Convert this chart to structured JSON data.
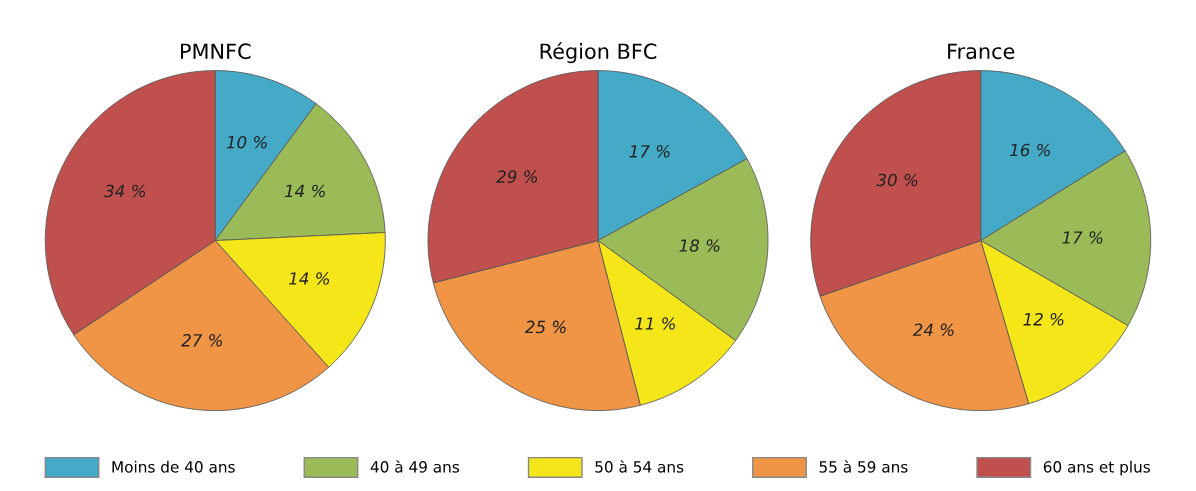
{
  "chart_data": [
    {
      "type": "pie",
      "title": "PMNFC",
      "categories": [
        "Moins de 40 ans",
        "40 à 49 ans",
        "50 à 54 ans",
        "55 à 59 ans",
        "60 ans et plus"
      ],
      "values": [
        10,
        14,
        14,
        27,
        34
      ],
      "value_labels": [
        "10 %",
        "14 %",
        "14 %",
        "27 %",
        "34 %"
      ],
      "colors": [
        "#45aac8",
        "#9bbb59",
        "#f5e61a",
        "#f09546",
        "#c0504d"
      ],
      "legend": "bottom"
    },
    {
      "type": "pie",
      "title": "Région BFC",
      "values": [
        17,
        18,
        11,
        25,
        29
      ],
      "value_labels": [
        "17 %",
        "18 %",
        "11 %",
        "25 %",
        "29 %"
      ],
      "colors": [
        "#45aac8",
        "#9bbb59",
        "#f5e61a",
        "#f09546",
        "#c0504d"
      ]
    },
    {
      "type": "pie",
      "title": "France",
      "values": [
        16,
        17,
        12,
        24,
        30
      ],
      "value_labels": [
        "16 %",
        "17 %",
        "12 %",
        "24 %",
        "30 %"
      ],
      "colors": [
        "#45aac8",
        "#9bbb59",
        "#f5e61a",
        "#f09546",
        "#c0504d"
      ]
    }
  ]
}
